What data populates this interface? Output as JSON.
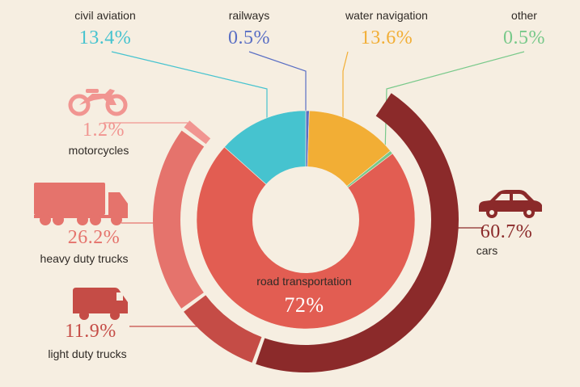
{
  "chart_data": {
    "type": "pie",
    "inner_donut": {
      "slices": [
        {
          "name": "road transportation",
          "pct_label": "72%",
          "value": 72.0,
          "color": "#e25d52"
        },
        {
          "name": "civil aviation",
          "pct_label": "13.4%",
          "value": 13.4,
          "color": "#46c3cf"
        },
        {
          "name": "railways",
          "pct_label": "0.5%",
          "value": 0.5,
          "color": "#5a6fc4"
        },
        {
          "name": "water navigation",
          "pct_label": "13.6%",
          "value": 13.6,
          "color": "#f2ae35"
        },
        {
          "name": "other",
          "pct_label": "0.5%",
          "value": 0.5,
          "color": "#78c98a"
        }
      ]
    },
    "outer_ring": {
      "parent": "road transportation",
      "slices": [
        {
          "name": "cars",
          "pct_label": "60.7%",
          "value": 60.7,
          "color": "#8b2a2a",
          "icon": "car-icon"
        },
        {
          "name": "light duty trucks",
          "pct_label": "11.9%",
          "value": 11.9,
          "color": "#c54c46",
          "icon": "van-icon"
        },
        {
          "name": "heavy duty trucks",
          "pct_label": "26.2%",
          "value": 26.2,
          "color": "#e5736c",
          "icon": "truck-icon"
        },
        {
          "name": "motorcycles",
          "pct_label": "1.2%",
          "value": 1.2,
          "color": "#f19591",
          "icon": "motorcycle-icon"
        }
      ]
    }
  },
  "colors": {
    "background": "#f6eee1",
    "label_text": "#2f2a26",
    "center_hole": "#f6eee1"
  }
}
